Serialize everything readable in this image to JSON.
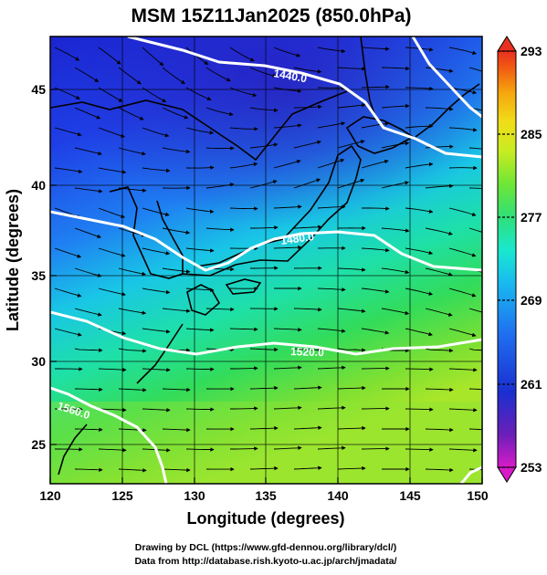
{
  "title": "MSM 15Z11Jan2025 (850.0hPa)",
  "x_axis": {
    "label": "Longitude (degrees)",
    "ticks": [
      "120",
      "125",
      "130",
      "135",
      "140",
      "145",
      "150"
    ],
    "range": [
      120,
      150
    ]
  },
  "y_axis": {
    "label": "Latitude  (degrees)",
    "ticks": [
      "25",
      "30",
      "35",
      "40",
      "45"
    ],
    "range": [
      22.5,
      47.8
    ]
  },
  "colorbar": {
    "labels": [
      "293",
      "285",
      "277",
      "269",
      "261",
      "253"
    ],
    "range": [
      253,
      293
    ],
    "colors": [
      "#d81bc8",
      "#6a1fb8",
      "#1a2fd0",
      "#1f6ff0",
      "#19b8f0",
      "#19e8d0",
      "#2ee07a",
      "#6ee636",
      "#c8ec22",
      "#f0dd18",
      "#f6a60e",
      "#f25a12",
      "#e83020"
    ]
  },
  "contours": [
    {
      "label": "1440.0"
    },
    {
      "label": "1480.0"
    },
    {
      "label": "1520.0"
    },
    {
      "label": "1560.0"
    }
  ],
  "credits": {
    "line1": "Drawing by DCL (https://www.gfd-dennou.org/library/dcl/)",
    "line2": "Data from http://database.rish.kyoto-u.ac.jp/arch/jmadata/"
  },
  "colors": {
    "cold": "#1f2fd8",
    "warm": "#6fe03a",
    "contour": "#ffffff",
    "coast": "#000000"
  }
}
